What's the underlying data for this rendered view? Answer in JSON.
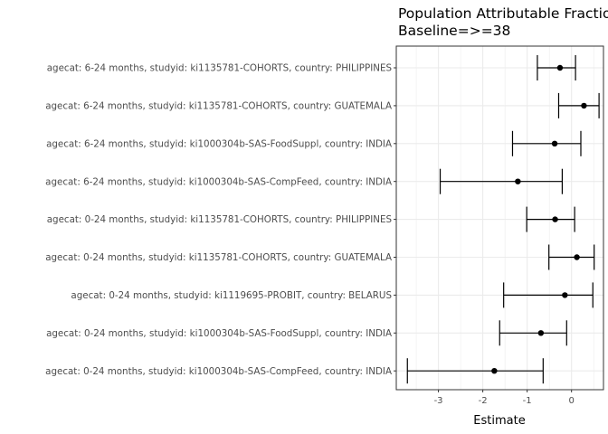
{
  "chart_data": {
    "type": "forest",
    "title": "Population Attributable Fraction",
    "subtitle": "Baseline=>=38",
    "xlabel": "Estimate",
    "ylabel": "",
    "xlim": [
      -3.95,
      0.72
    ],
    "xticks": [
      -3,
      -2,
      -1,
      0
    ],
    "grid": true,
    "legend": "none",
    "rows": [
      {
        "label": "agecat: 6-24 months, studyid: ki1135781-COHORTS, country: PHILIPPINES",
        "estimate": -0.26,
        "lower": -0.77,
        "upper": 0.09
      },
      {
        "label": "agecat: 6-24 months, studyid: ki1135781-COHORTS, country: GUATEMALA",
        "estimate": 0.28,
        "lower": -0.29,
        "upper": 0.62
      },
      {
        "label": "agecat: 6-24 months, studyid: ki1000304b-SAS-FoodSuppl, country: INDIA",
        "estimate": -0.38,
        "lower": -1.33,
        "upper": 0.21
      },
      {
        "label": "agecat: 6-24 months, studyid: ki1000304b-SAS-CompFeed, country: INDIA",
        "estimate": -1.21,
        "lower": -2.96,
        "upper": -0.21
      },
      {
        "label": "agecat: 0-24 months, studyid: ki1135781-COHORTS, country: PHILIPPINES",
        "estimate": -0.37,
        "lower": -1.01,
        "upper": 0.07
      },
      {
        "label": "agecat: 0-24 months, studyid: ki1135781-COHORTS, country: GUATEMALA",
        "estimate": 0.12,
        "lower": -0.51,
        "upper": 0.51
      },
      {
        "label": "agecat: 0-24 months, studyid: ki1119695-PROBIT, country: BELARUS",
        "estimate": -0.15,
        "lower": -1.53,
        "upper": 0.48
      },
      {
        "label": "agecat: 0-24 months, studyid: ki1000304b-SAS-FoodSuppl, country: INDIA",
        "estimate": -0.69,
        "lower": -1.62,
        "upper": -0.11
      },
      {
        "label": "agecat: 0-24 months, studyid: ki1000304b-SAS-CompFeed, country: INDIA",
        "estimate": -1.74,
        "lower": -3.7,
        "upper": -0.64
      }
    ],
    "colors": {
      "panel_border": "#333333",
      "grid": "#ebebeb",
      "mark": "#000000"
    }
  }
}
